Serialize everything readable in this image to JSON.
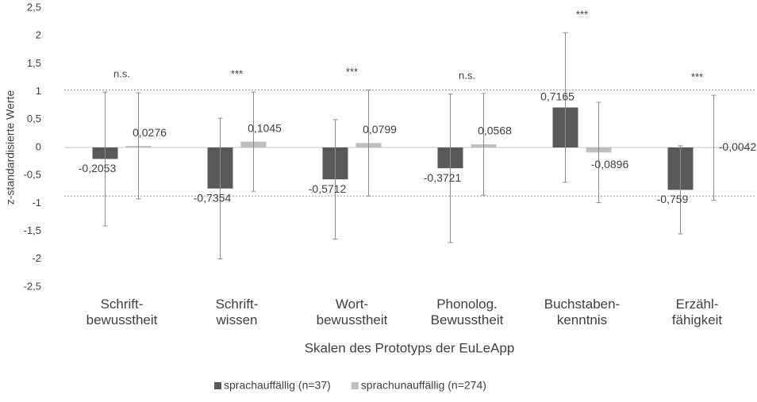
{
  "chart_data": {
    "type": "bar",
    "x_label": "Skalen des Prototyps der EuLeApp",
    "y_label": "z-standardisierte Werte",
    "categories": [
      [
        "Schrift-",
        "bewusstheit"
      ],
      [
        "Schrift-",
        "wissen"
      ],
      [
        "Wort-",
        "bewusstheit"
      ],
      [
        "Phonolog.",
        "Bewusstheit"
      ],
      [
        "Buchstaben-",
        "kenntnis"
      ],
      [
        "Erzähl-",
        "fähigkeit"
      ]
    ],
    "annotations": [
      "n.s.",
      "***",
      "***",
      "n.s.",
      "***",
      "***"
    ],
    "series": [
      {
        "name": "sprachauffällig (n=37)",
        "color": "#595959",
        "values": [
          -0.2053,
          -0.7354,
          -0.5712,
          -0.3721,
          0.7165,
          -0.759
        ],
        "value_labels": [
          "-0,2053",
          "-0,7354",
          "-0,5712",
          "-0,3721",
          "0,7165",
          "-0,759"
        ],
        "errors": [
          1.2,
          1.26,
          1.07,
          1.33,
          1.34,
          0.79
        ]
      },
      {
        "name": "sprachunauffällig (n=274)",
        "color": "#bfbfbf",
        "values": [
          0.0276,
          0.1045,
          0.0799,
          0.0568,
          -0.0896,
          -0.0042
        ],
        "value_labels": [
          "0,0276",
          "0,1045",
          "0,0799",
          "0,0568",
          "-0,0896",
          "-0,0042"
        ],
        "errors": [
          0.95,
          0.89,
          0.95,
          0.91,
          0.9,
          0.94
        ]
      }
    ],
    "reference_lines": [
      1.03,
      -0.87
    ],
    "ylim": [
      -2.5,
      2.5
    ],
    "yticks": [
      {
        "value": -2.5,
        "label": "-2,5"
      },
      -2,
      {
        "value": -1.5,
        "label": "-1,5"
      },
      -1,
      {
        "value": -0.5,
        "label": "-0,5"
      },
      0,
      {
        "value": 0.5,
        "label": "0,5"
      },
      1,
      {
        "value": 1.5,
        "label": "1,5"
      },
      2,
      {
        "value": 2.5,
        "label": "2,5"
      }
    ]
  }
}
